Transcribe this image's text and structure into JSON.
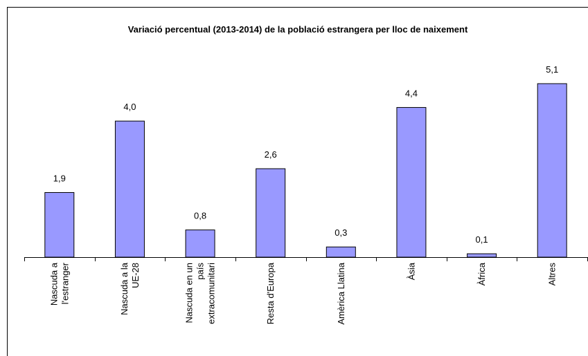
{
  "chart_data": {
    "type": "bar",
    "title": "Variació percentual (2013-2014) de la població estrangera per lloc de naixement",
    "categories": [
      "Nascuda a l'estranger",
      "Nascuda a la UE-28",
      "Nascuda en un país extracomunitari",
      "Resta d'Europa",
      "Amèrica Llatina",
      "Àsia",
      "Àfrica",
      "Altres"
    ],
    "values": [
      1.9,
      4.0,
      0.8,
      2.6,
      0.3,
      4.4,
      0.1,
      5.1
    ],
    "value_labels": [
      "1,9",
      "4,0",
      "0,8",
      "2,6",
      "0,3",
      "4,4",
      "0,1",
      "5,1"
    ],
    "color": "#9999ff"
  }
}
